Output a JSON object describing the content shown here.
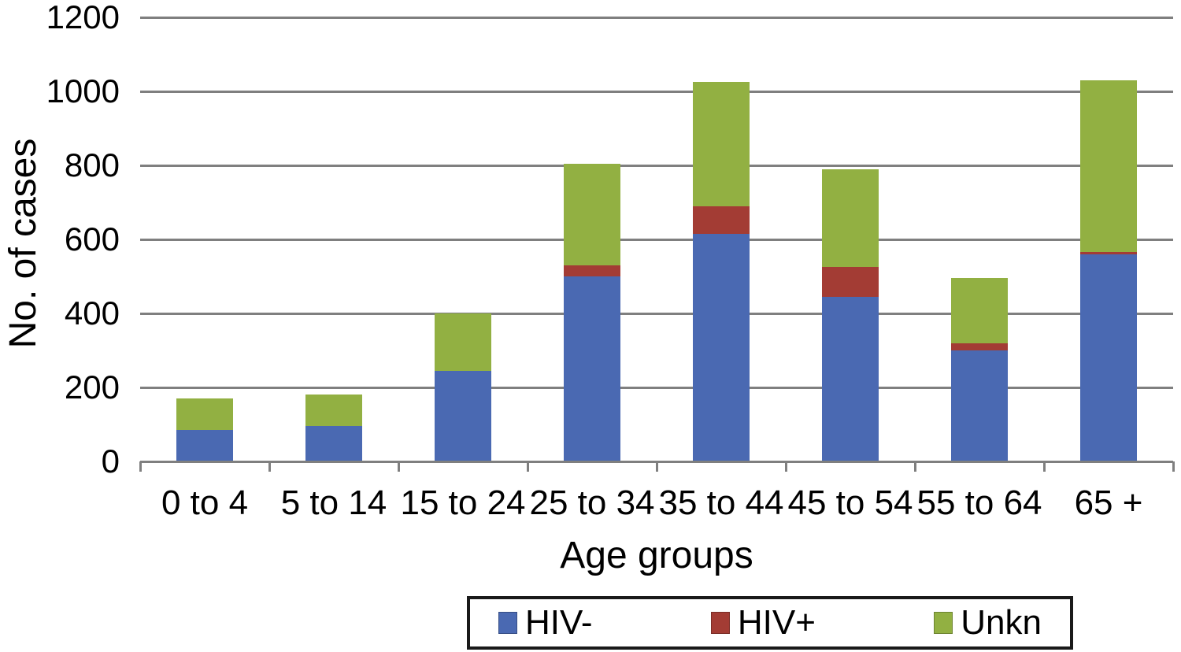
{
  "chart_data": {
    "type": "bar",
    "stacked": true,
    "title": "",
    "xlabel": "Age groups",
    "ylabel": "No. of cases",
    "categories": [
      "0 to 4",
      "5 to 14",
      "15 to 24",
      "25 to 34",
      "35 to 44",
      "45 to 54",
      "55 to 64",
      "65 +"
    ],
    "series": [
      {
        "name": "HIV-",
        "color": "#4a69b2",
        "values": [
          85,
          95,
          245,
          500,
          615,
          445,
          300,
          560
        ]
      },
      {
        "name": "HIV+",
        "color": "#a33c34",
        "values": [
          0,
          0,
          0,
          30,
          75,
          80,
          20,
          5
        ]
      },
      {
        "name": "Unkn",
        "color": "#92b042",
        "values": [
          85,
          85,
          155,
          275,
          335,
          265,
          175,
          465
        ]
      }
    ],
    "ylim": [
      0,
      1200
    ],
    "yticks": [
      0,
      200,
      400,
      600,
      800,
      1000,
      1200
    ],
    "grid": true,
    "legend_position": "bottom",
    "gridline_color": "#7f7f7f",
    "background": "#ffffff"
  }
}
